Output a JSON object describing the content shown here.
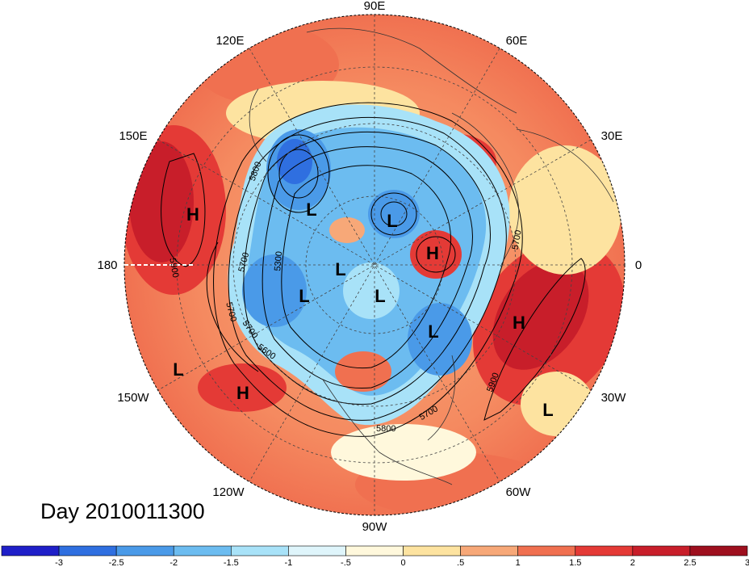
{
  "title": "Day 2010011300",
  "longitude_labels": {
    "lon_90e": "90E",
    "lon_120e": "120E",
    "lon_60e": "60E",
    "lon_150e": "150E",
    "lon_30e": "30E",
    "lon_180": "180",
    "lon_0": "0",
    "lon_150w": "150W",
    "lon_30w": "30W",
    "lon_120w": "120W",
    "lon_60w": "60W",
    "lon_90w": "90W"
  },
  "pressure_centers": [
    {
      "label": "H"
    },
    {
      "label": "L"
    },
    {
      "label": "L"
    },
    {
      "label": "H"
    },
    {
      "label": "L"
    },
    {
      "label": "L"
    },
    {
      "label": "L"
    },
    {
      "label": "L"
    },
    {
      "label": "H"
    },
    {
      "label": "L"
    },
    {
      "label": "H"
    },
    {
      "label": "L"
    }
  ],
  "contour_labels": {
    "c5800_a": "5800",
    "c5900_a": "5900",
    "c5700_a": "5700",
    "c5300": "5300",
    "c5700_b": "5700",
    "c5600": "5600",
    "c5700_c": "5700",
    "c5900_b": "5900",
    "c5700_d": "5700",
    "c5800_b": "5800"
  },
  "colorbar": {
    "colors": [
      "#1f1fc8",
      "#2f6fe0",
      "#4a9ae8",
      "#6cbcf0",
      "#a8e2f8",
      "#dff5fb",
      "#fff8dc",
      "#fde3a0",
      "#f7a878",
      "#f07050",
      "#e43a36",
      "#c81e2a",
      "#9e0f1e"
    ],
    "ticks": [
      "-3",
      "-2.5",
      "-2",
      "-1.5",
      "-1",
      "-.5",
      "0",
      ".5",
      "1",
      "1.5",
      "2",
      "2.5",
      "3"
    ]
  }
}
